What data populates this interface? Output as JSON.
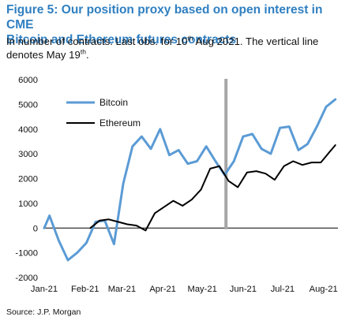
{
  "header": {
    "title_line1": "Figure 5: Our position proxy based on open interest in CME",
    "title_line2": "Bitcoin and Ethereum futures contracts",
    "subtitle_part1": "In number of contracts. Last obs. for 10",
    "subtitle_sup1": "th",
    "subtitle_part2": " Aug 2021. The vertical line",
    "subtitle_part3": "denotes May 19",
    "subtitle_sup2": "th",
    "subtitle_part4": "."
  },
  "source": "Source: J.P. Morgan",
  "colors": {
    "bitcoin": "#5b9bd5",
    "ethereum": "#000000",
    "marker": "#a6a6a6",
    "title": "#2f7fc1"
  },
  "chart_data": {
    "type": "line",
    "title": "Figure 5: Our position proxy based on open interest in CME Bitcoin and Ethereum futures contracts",
    "ylim": [
      -2000,
      6000
    ],
    "y_ticks": [
      -2000,
      -1000,
      0,
      1000,
      2000,
      3000,
      4000,
      5000,
      6000
    ],
    "x_tick_labels": [
      "Jan-21",
      "Feb-21",
      "Mar-21",
      "Apr-21",
      "May-21",
      "Jun-21",
      "Jul-21",
      "Aug-21"
    ],
    "xlim": [
      "2021-01-01",
      "2021-08-12"
    ],
    "vertical_line": "2021-05-19",
    "legend": [
      "Bitcoin",
      "Ethereum"
    ],
    "legend_position": "top-left",
    "series": [
      {
        "name": "Bitcoin",
        "points": [
          [
            "2021-01-01",
            0
          ],
          [
            "2021-01-05",
            500
          ],
          [
            "2021-01-12",
            -500
          ],
          [
            "2021-01-19",
            -1300
          ],
          [
            "2021-01-26",
            -1000
          ],
          [
            "2021-02-02",
            -600
          ],
          [
            "2021-02-09",
            250
          ],
          [
            "2021-02-16",
            300
          ],
          [
            "2021-02-23",
            -650
          ],
          [
            "2021-03-02",
            1800
          ],
          [
            "2021-03-09",
            3300
          ],
          [
            "2021-03-16",
            3700
          ],
          [
            "2021-03-23",
            3200
          ],
          [
            "2021-03-30",
            4000
          ],
          [
            "2021-04-06",
            2950
          ],
          [
            "2021-04-13",
            3150
          ],
          [
            "2021-04-20",
            2600
          ],
          [
            "2021-04-27",
            2700
          ],
          [
            "2021-05-04",
            3300
          ],
          [
            "2021-05-11",
            2700
          ],
          [
            "2021-05-18",
            2150
          ],
          [
            "2021-05-25",
            2700
          ],
          [
            "2021-06-01",
            3700
          ],
          [
            "2021-06-08",
            3800
          ],
          [
            "2021-06-15",
            3200
          ],
          [
            "2021-06-22",
            3000
          ],
          [
            "2021-06-29",
            4050
          ],
          [
            "2021-07-06",
            4100
          ],
          [
            "2021-07-13",
            3150
          ],
          [
            "2021-07-20",
            3400
          ],
          [
            "2021-07-27",
            4100
          ],
          [
            "2021-08-03",
            4900
          ],
          [
            "2021-08-10",
            5200
          ]
        ]
      },
      {
        "name": "Ethereum",
        "points": [
          [
            "2021-02-05",
            0
          ],
          [
            "2021-02-12",
            300
          ],
          [
            "2021-02-19",
            350
          ],
          [
            "2021-02-26",
            250
          ],
          [
            "2021-03-05",
            150
          ],
          [
            "2021-03-12",
            100
          ],
          [
            "2021-03-19",
            -100
          ],
          [
            "2021-03-26",
            600
          ],
          [
            "2021-04-02",
            850
          ],
          [
            "2021-04-09",
            1100
          ],
          [
            "2021-04-16",
            900
          ],
          [
            "2021-04-23",
            1150
          ],
          [
            "2021-04-30",
            1550
          ],
          [
            "2021-05-07",
            2400
          ],
          [
            "2021-05-14",
            2500
          ],
          [
            "2021-05-21",
            1900
          ],
          [
            "2021-05-28",
            1650
          ],
          [
            "2021-06-04",
            2250
          ],
          [
            "2021-06-11",
            2300
          ],
          [
            "2021-06-18",
            2200
          ],
          [
            "2021-06-25",
            1950
          ],
          [
            "2021-07-02",
            2500
          ],
          [
            "2021-07-09",
            2700
          ],
          [
            "2021-07-16",
            2550
          ],
          [
            "2021-07-23",
            2650
          ],
          [
            "2021-07-30",
            2650
          ],
          [
            "2021-08-06",
            3100
          ],
          [
            "2021-08-10",
            3350
          ]
        ]
      }
    ]
  }
}
